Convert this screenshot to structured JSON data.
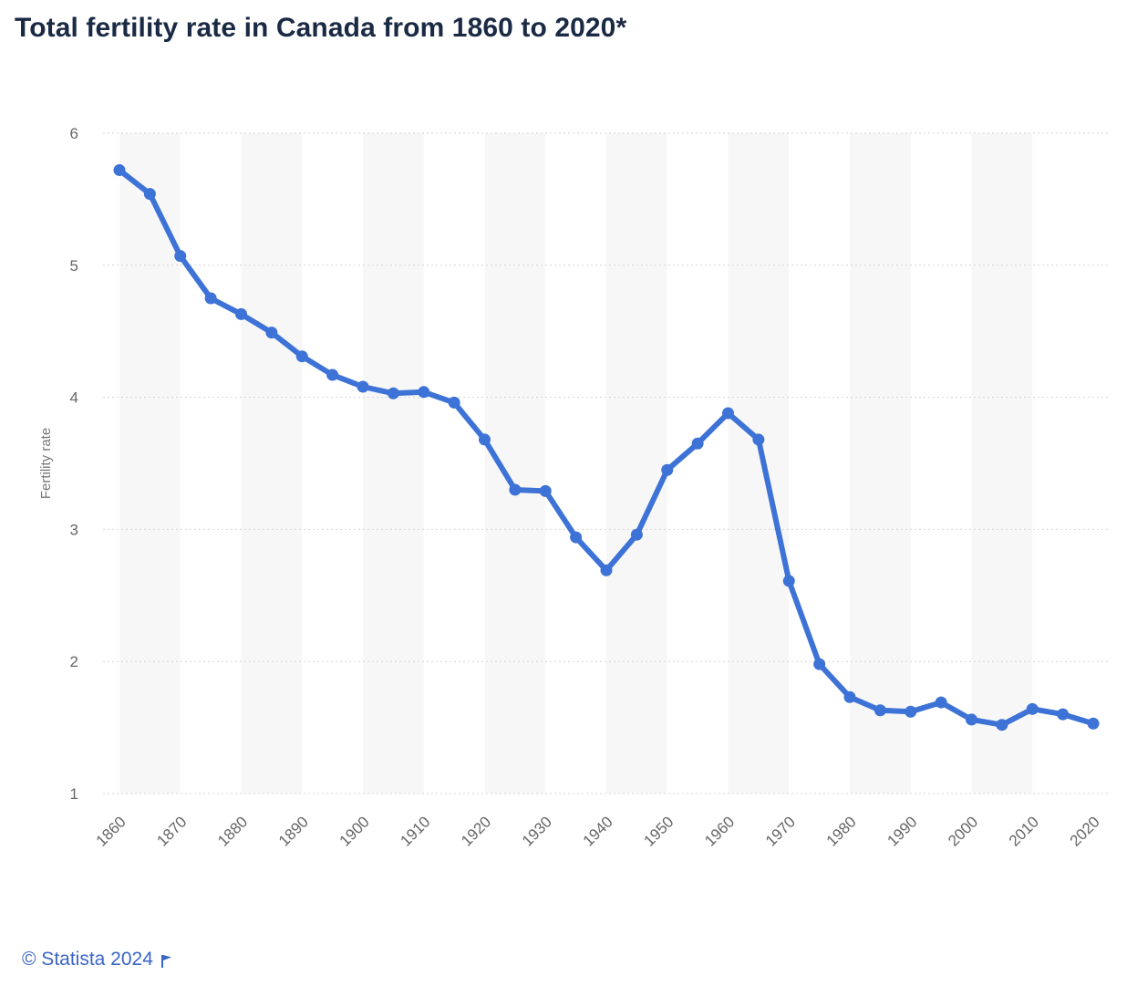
{
  "title": "Total fertility rate in Canada from 1860 to 2020*",
  "footer": {
    "copyright": "© Statista 2024",
    "flag_icon": "flag-icon"
  },
  "colors": {
    "line": "#3d72d6",
    "band": "#f7f7f7",
    "grid": "#d6d6d6",
    "tick": "#666666",
    "title": "#1b2a44",
    "footer": "#3a66c4"
  },
  "chart_data": {
    "type": "line",
    "title": "Total fertility rate in Canada from 1860 to 2020*",
    "xlabel": "",
    "ylabel": "Fertility rate",
    "xlim": [
      1860,
      2020
    ],
    "ylim": [
      1,
      6
    ],
    "y_ticks": [
      "1",
      "2",
      "3",
      "4",
      "5",
      "6"
    ],
    "x_ticks": [
      "1860",
      "1870",
      "1880",
      "1890",
      "1900",
      "1910",
      "1920",
      "1930",
      "1940",
      "1950",
      "1960",
      "1970",
      "1980",
      "1990",
      "2000",
      "2010",
      "2020"
    ],
    "grid": true,
    "legend": "none",
    "x": [
      1860,
      1865,
      1870,
      1875,
      1880,
      1885,
      1890,
      1895,
      1900,
      1905,
      1910,
      1915,
      1920,
      1925,
      1930,
      1935,
      1940,
      1945,
      1950,
      1955,
      1960,
      1965,
      1970,
      1975,
      1980,
      1985,
      1990,
      1995,
      2000,
      2005,
      2010,
      2015,
      2020
    ],
    "series": [
      {
        "values": [
          5.72,
          5.54,
          5.07,
          4.75,
          4.63,
          4.49,
          4.31,
          4.17,
          4.08,
          4.03,
          4.04,
          3.96,
          3.68,
          3.3,
          3.29,
          2.94,
          2.69,
          2.96,
          3.45,
          3.65,
          3.88,
          3.68,
          2.61,
          1.98,
          1.73,
          1.63,
          1.62,
          1.69,
          1.56,
          1.52,
          1.64,
          1.6,
          1.53
        ]
      }
    ]
  }
}
